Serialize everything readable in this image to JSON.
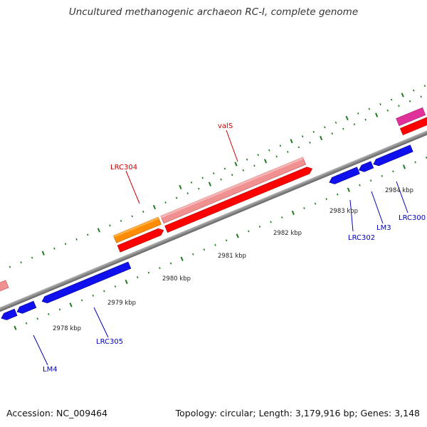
{
  "title": "Uncultured methanogenic archaeon RC-I, complete genome",
  "footer": {
    "accession": "Accession: NC_009464",
    "summary": "Topology: circular; Length: 3,179,916 bp; Genes: 3,148"
  },
  "colors": {
    "backbone": "#8c8c8c",
    "tick": "#1f7a1f",
    "gene_blue": "#1010ee",
    "gene_red": "#ff0000",
    "gene_pink": "#ef8585",
    "gene_orange": "#ff8c00",
    "gene_magenta": "#e0309a",
    "label_red": "#cc0000",
    "label_blue": "#0000bb"
  },
  "scale_labels": [
    "2978 kbp",
    "2979 kbp",
    "2980 kbp",
    "2981 kbp",
    "2982 kbp",
    "2983 kbp",
    "2984 kbp"
  ],
  "gene_labels": {
    "valS": "valS",
    "LRC304": "LRC304",
    "LRC302": "LRC302",
    "LM3": "LM3",
    "LRC300": "LRC300",
    "LRC305": "LRC305",
    "LM4": "LM4"
  }
}
